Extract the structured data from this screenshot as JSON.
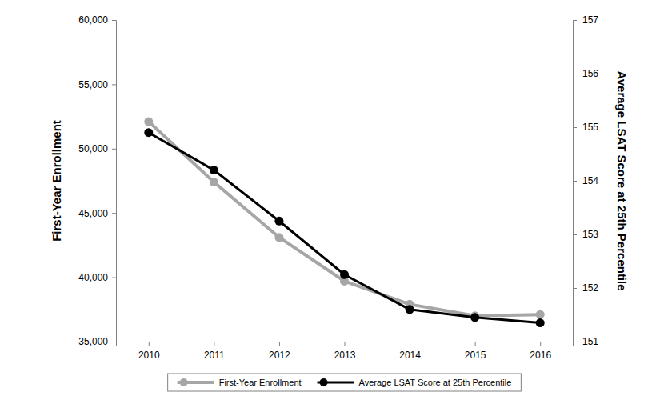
{
  "chart_data": {
    "type": "line",
    "categories": [
      "2010",
      "2011",
      "2012",
      "2013",
      "2014",
      "2015",
      "2016"
    ],
    "series": [
      {
        "name": "First-Year Enrollment",
        "color": "#a6a6a6",
        "marker": "circle",
        "line_style": "solid",
        "values": [
          52100,
          47400,
          43100,
          39700,
          37900,
          37000,
          37100
        ]
      },
      {
        "name": "Average LSAT Score at 25th Percentile",
        "color": "#000000",
        "marker": "circle",
        "line_style": "solid",
        "axis": "y2",
        "values": [
          154.9,
          154.2,
          153.25,
          152.25,
          151.6,
          151.45,
          151.35
        ]
      }
    ],
    "y_label": "First-Year Enrollment",
    "y2_label": "Average LSAT Score at 25th Percentile",
    "ylim": [
      35000,
      60000
    ],
    "yticks": [
      {
        "value": 35000,
        "label": "35,000"
      },
      {
        "value": 40000,
        "label": "40,000"
      },
      {
        "value": 45000,
        "label": "45,000"
      },
      {
        "value": 50000,
        "label": "50,000"
      },
      {
        "value": 55000,
        "label": "55,000"
      },
      {
        "value": 60000,
        "label": "60,000"
      }
    ],
    "y2lim": [
      151,
      157
    ],
    "y2ticks": [
      151,
      152,
      153,
      154,
      155,
      156,
      157
    ],
    "legend": "bottom",
    "grid": false
  }
}
